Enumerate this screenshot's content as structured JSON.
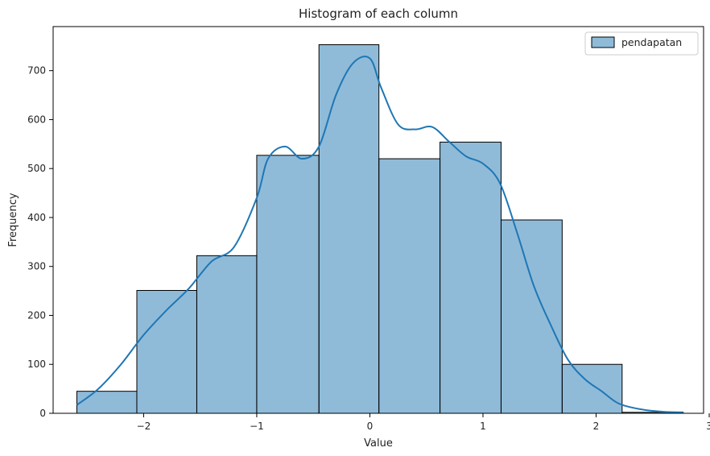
{
  "chart_data": {
    "type": "bar",
    "title": "Histogram of each column",
    "xlabel": "Value",
    "ylabel": "Frequency",
    "xlim": [
      -2.8,
      2.95
    ],
    "ylim": [
      0,
      790
    ],
    "xticks": [
      -2,
      -1,
      0,
      1,
      2,
      3
    ],
    "xtick_labels": [
      "−2",
      "−1",
      "0",
      "1",
      "2",
      "3"
    ],
    "yticks": [
      0,
      100,
      200,
      300,
      400,
      500,
      600,
      700
    ],
    "grid": false,
    "legend_position": "top-right",
    "series": [
      {
        "name": "pendapatan",
        "color": "#1f77b4",
        "bin_edges": [
          -2.59,
          -2.06,
          -1.53,
          -1.0,
          -0.45,
          0.08,
          0.62,
          1.16,
          1.7,
          2.23,
          2.77
        ],
        "counts": [
          45,
          251,
          322,
          527,
          753,
          520,
          554,
          395,
          100,
          2
        ],
        "kde": {
          "x": [
            -2.59,
            -2.4,
            -2.2,
            -2.0,
            -1.8,
            -1.6,
            -1.4,
            -1.2,
            -1.0,
            -0.9,
            -0.75,
            -0.6,
            -0.45,
            -0.3,
            -0.15,
            0.0,
            0.1,
            0.25,
            0.4,
            0.55,
            0.7,
            0.85,
            1.0,
            1.15,
            1.3,
            1.45,
            1.6,
            1.75,
            1.9,
            2.05,
            2.2,
            2.4,
            2.6,
            2.77
          ],
          "y": [
            17,
            50,
            100,
            160,
            210,
            255,
            310,
            340,
            440,
            520,
            545,
            520,
            545,
            650,
            715,
            725,
            665,
            590,
            580,
            585,
            555,
            525,
            510,
            470,
            370,
            260,
            180,
            110,
            70,
            45,
            20,
            8,
            3,
            2
          ]
        }
      }
    ]
  }
}
